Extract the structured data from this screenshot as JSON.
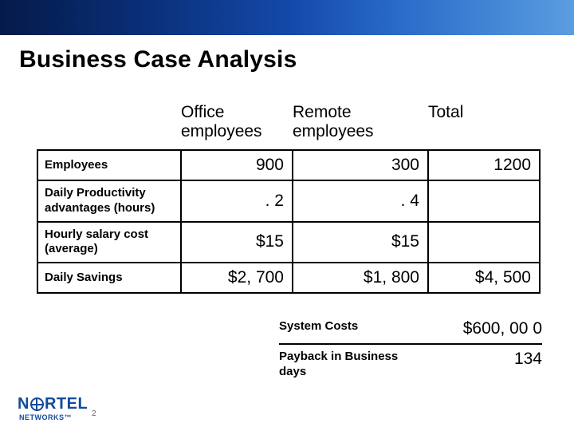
{
  "title": "Business Case Analysis",
  "table": {
    "columns": [
      "Office employees",
      "Remote employees",
      "Total"
    ],
    "rows": [
      {
        "label": "Employees",
        "cells": [
          "900",
          "300",
          "1200"
        ]
      },
      {
        "label": "Daily Productivity advantages (hours)",
        "cells": [
          ". 2",
          ". 4",
          ""
        ]
      },
      {
        "label": "Hourly salary cost (average)",
        "cells": [
          "$15",
          "$15",
          ""
        ]
      },
      {
        "label": "Daily Savings",
        "cells": [
          "$2, 700",
          "$1, 800",
          "$4, 500"
        ]
      }
    ]
  },
  "lower": [
    {
      "label": "System Costs",
      "value": "$600, 00 0"
    },
    {
      "label": "Payback in Business days",
      "value": "134"
    }
  ],
  "logo": {
    "text_left": "N",
    "text_right": "RTEL",
    "sub": "NETWORKS",
    "tm": "™"
  },
  "page_number": "2",
  "colors": {
    "brand": "#114a9c",
    "text": "#000000",
    "band_from": "#041a4a",
    "band_to": "#5a9de0"
  }
}
